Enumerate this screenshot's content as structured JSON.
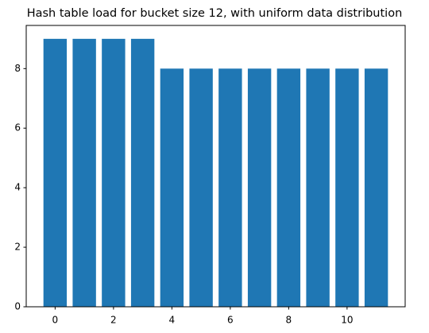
{
  "chart_data": {
    "type": "bar",
    "title": "Hash table load for bucket size 12, with uniform data distribution",
    "x": [
      0,
      1,
      2,
      3,
      4,
      5,
      6,
      7,
      8,
      9,
      10,
      11
    ],
    "values": [
      9,
      9,
      9,
      9,
      8,
      8,
      8,
      8,
      8,
      8,
      8,
      8
    ],
    "color": "#1f77b4",
    "xlim": [
      -0.99,
      11.99
    ],
    "xticks": [
      0,
      2,
      4,
      6,
      8,
      10
    ],
    "ylim": [
      0,
      9.45
    ],
    "yticks": [
      0,
      2,
      4,
      6,
      8
    ],
    "grid": false
  }
}
